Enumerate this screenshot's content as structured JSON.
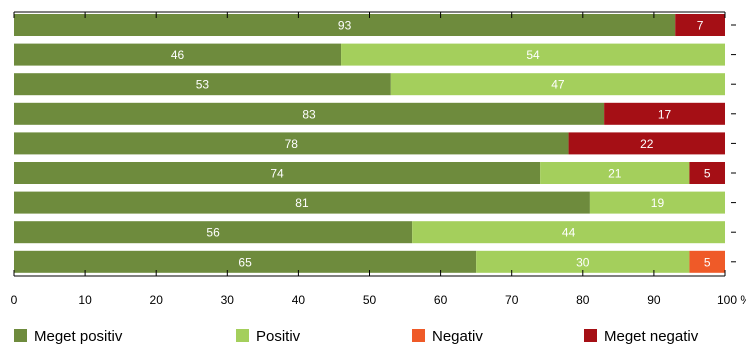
{
  "chart_data": {
    "type": "bar",
    "orientation": "horizontal",
    "stacked": true,
    "categories": [
      "",
      "",
      "",
      "",
      "",
      "",
      "",
      "",
      ""
    ],
    "xlim": [
      0,
      100
    ],
    "xticks": [
      "0",
      "10",
      "20",
      "30",
      "40",
      "50",
      "60",
      "70",
      "80",
      "90",
      "100 %"
    ],
    "grid": false,
    "legend_position": "bottom",
    "series": [
      {
        "name": "Meget positiv",
        "color": "#6e8b3d",
        "values": [
          93,
          46,
          53,
          83,
          78,
          74,
          81,
          56,
          65
        ]
      },
      {
        "name": "Positiv",
        "color": "#a4cf5c",
        "values": [
          0,
          54,
          47,
          0,
          0,
          21,
          19,
          44,
          30
        ]
      },
      {
        "name": "Negativ",
        "color": "#ef5a28",
        "values": [
          0,
          0,
          0,
          0,
          0,
          0,
          0,
          0,
          5
        ]
      },
      {
        "name": "Meget negativ",
        "color": "#a50f15",
        "values": [
          7,
          0,
          0,
          17,
          22,
          5,
          0,
          0,
          0
        ]
      }
    ]
  }
}
